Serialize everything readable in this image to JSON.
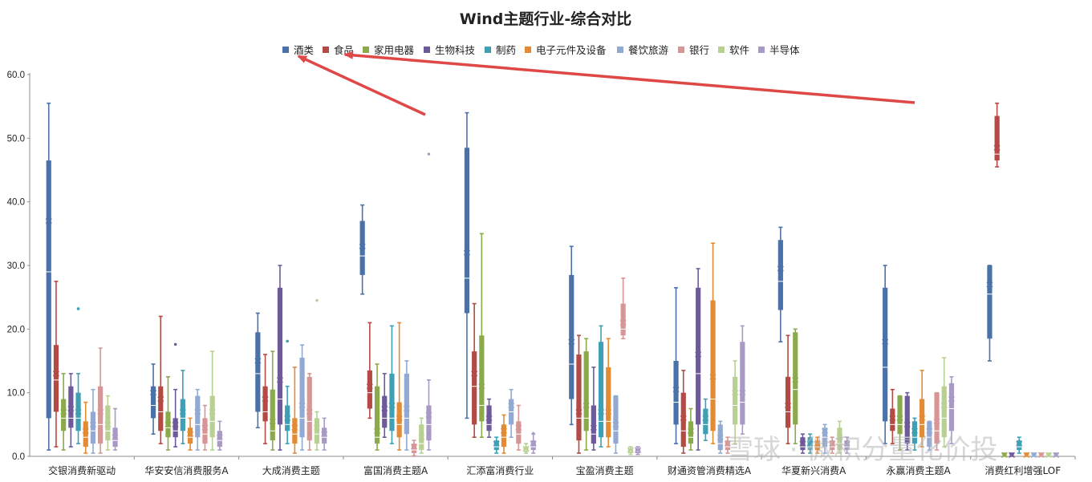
{
  "chart_data": {
    "type": "boxplot",
    "title": "Wind主题行业-综合对比",
    "xlabel": "",
    "ylabel": "",
    "ylim": [
      0,
      60
    ],
    "yticks": [
      "0.0",
      "10.0",
      "20.0",
      "30.0",
      "40.0",
      "50.0",
      "60.0"
    ],
    "legend_position": "top",
    "grid": false,
    "categories": [
      "交银消费新驱动",
      "华安安信消费服务A",
      "大成消费主题",
      "富国消费主题A",
      "汇添富消费行业",
      "宝盈消费主题",
      "财通资管消费精选A",
      "华夏新兴消费A",
      "永赢消费主题A",
      "消费红利增强LOF"
    ],
    "series": [
      {
        "name": "酒类",
        "color": "#4a72a8",
        "values": [
          [
            1,
            6,
            29,
            37,
            46.5,
            55.5
          ],
          [
            3.5,
            6,
            8,
            10,
            11,
            14.5
          ],
          [
            4.5,
            7,
            13,
            15,
            19.5,
            22.5
          ],
          [
            25.5,
            28.5,
            31.5,
            33,
            37,
            39.5
          ],
          [
            6,
            22.5,
            28,
            32,
            48.5,
            54
          ],
          [
            5,
            9,
            14.5,
            18,
            28.5,
            33
          ],
          [
            2,
            5,
            8.5,
            10.5,
            15,
            26.5
          ],
          [
            18,
            23,
            27.5,
            29.5,
            34,
            36
          ],
          [
            2,
            5.5,
            14,
            18,
            26.5,
            30
          ],
          [
            15,
            18.5,
            25.5,
            27,
            30,
            30
          ]
        ]
      },
      {
        "name": "食品",
        "color": "#b34a46",
        "values": [
          [
            1.5,
            7,
            12,
            13,
            17.5,
            27.5
          ],
          [
            2,
            4,
            7,
            9,
            11,
            22
          ],
          [
            2,
            5.5,
            7,
            9,
            11,
            16
          ],
          [
            6,
            7.5,
            10,
            11,
            13.5,
            21
          ],
          [
            3,
            5,
            11,
            13,
            16.5,
            24
          ],
          [
            0.5,
            2.5,
            6,
            7,
            16,
            19
          ],
          [
            0.5,
            1.5,
            4,
            6,
            10,
            13.5
          ],
          [
            2,
            4.5,
            7,
            8,
            12.5,
            19
          ],
          [
            2,
            4,
            5,
            6,
            7.5,
            10.5
          ],
          [
            45.5,
            46.5,
            47.5,
            48.5,
            53.5,
            55.5
          ]
        ]
      },
      {
        "name": "家用电器",
        "color": "#8aaa4b",
        "values": [
          [
            1,
            4,
            6,
            7,
            9,
            13
          ],
          [
            1,
            3,
            4.5,
            5,
            7,
            12.5
          ],
          [
            1,
            2.5,
            4,
            5.5,
            10.5,
            16.5
          ],
          [
            1,
            2,
            3,
            4,
            11,
            14.5
          ],
          [
            3,
            5.5,
            8,
            11,
            19,
            35
          ],
          [
            1,
            4,
            6,
            8,
            16.5,
            18.5
          ],
          [
            1,
            2,
            3,
            4,
            5.5,
            7.5
          ],
          [
            2,
            5,
            10.5,
            12,
            19.5,
            20
          ],
          [
            1,
            3.5,
            5,
            6,
            9.5,
            9.5
          ],
          [
            0,
            0,
            0.1,
            0.2,
            0.3,
            0.5
          ]
        ]
      },
      {
        "name": "生物科技",
        "color": "#6e5a9a",
        "values": [
          [
            1.5,
            4.5,
            6,
            7.5,
            11,
            13
          ],
          [
            1.5,
            3,
            4,
            5,
            6,
            10.5
          ],
          [
            1,
            5,
            9,
            12,
            26.5,
            30
          ],
          [
            3,
            4.5,
            6,
            7.5,
            9.5,
            13
          ],
          [
            3,
            4,
            5,
            6,
            8,
            9
          ],
          [
            1,
            2,
            3.5,
            4.5,
            8,
            14
          ],
          [
            1,
            5,
            13,
            16,
            26.5,
            29.5
          ],
          [
            0.5,
            1,
            1.5,
            2,
            3,
            3.5
          ],
          [
            1,
            2,
            3,
            5,
            9.5,
            10
          ],
          [
            0,
            0,
            0.1,
            0.2,
            0.3,
            0.5
          ]
        ]
      },
      {
        "name": "制药",
        "color": "#3f9fb5",
        "values": [
          [
            2,
            4,
            6,
            7,
            10,
            13
          ],
          [
            2,
            4,
            6,
            7,
            9,
            13.5
          ],
          [
            2,
            4,
            5,
            6,
            8,
            11
          ],
          [
            2,
            4,
            6,
            8,
            13,
            20.5
          ],
          [
            0.5,
            1,
            1.5,
            2,
            2.5,
            3
          ],
          [
            1.5,
            3,
            5.5,
            7,
            18,
            20.5
          ],
          [
            2.5,
            3.5,
            5,
            6,
            7.5,
            9
          ],
          [
            0.5,
            1,
            1.5,
            2,
            3,
            3.5
          ],
          [
            1,
            2,
            3,
            4,
            5.5,
            6
          ],
          [
            0.5,
            1,
            1.5,
            2,
            2.5,
            3
          ]
        ]
      },
      {
        "name": "电子元件及设备",
        "color": "#e38a35",
        "values": [
          [
            0.5,
            1.5,
            3,
            4,
            5.5,
            8.5
          ],
          [
            1,
            2,
            3,
            3.5,
            4.5,
            6
          ],
          [
            0.5,
            2,
            3.5,
            4.5,
            6,
            14
          ],
          [
            1,
            3,
            5,
            6,
            8.5,
            21
          ],
          [
            0.5,
            1.5,
            3,
            4,
            5,
            6.5
          ],
          [
            1.5,
            3,
            5.5,
            7,
            14,
            18.5
          ],
          [
            2,
            4,
            9,
            12.5,
            24.5,
            33.5
          ],
          [
            0.5,
            1,
            1.5,
            2,
            2.5,
            3
          ],
          [
            1.5,
            3,
            5,
            6,
            9,
            13.5
          ],
          [
            0,
            0,
            0.1,
            0.2,
            0.3,
            0.5
          ]
        ]
      },
      {
        "name": "餐饮旅游",
        "color": "#92a9d4",
        "values": [
          [
            0.5,
            2,
            4,
            5,
            7,
            10.5
          ],
          [
            1,
            3,
            5,
            7,
            9.5,
            10.5
          ],
          [
            1,
            3,
            6,
            8,
            15.5,
            17.5
          ],
          [
            1,
            3.5,
            6,
            7.5,
            13,
            15
          ],
          [
            3,
            5,
            7,
            8,
            9,
            10.5
          ],
          [
            0.5,
            2,
            4,
            5,
            9.5,
            9.5
          ],
          [
            0.5,
            1,
            2,
            3,
            5,
            5.5
          ],
          [
            0.5,
            1.5,
            3,
            4,
            4.5,
            5
          ],
          [
            1,
            1.5,
            3,
            4,
            5.5,
            5.5
          ],
          [
            0,
            0,
            0.1,
            0.2,
            0.3,
            0.5
          ]
        ]
      },
      {
        "name": "银行",
        "color": "#d79695",
        "values": [
          [
            0.5,
            2,
            5,
            7,
            11,
            17
          ],
          [
            1,
            2,
            3.5,
            4.5,
            6,
            8
          ],
          [
            1,
            2.5,
            5.5,
            7,
            12.5,
            13
          ],
          [
            0.1,
            0.5,
            1,
            1.5,
            2,
            2.5
          ],
          [
            1,
            2,
            3.5,
            4.5,
            5.5,
            8
          ],
          [
            18.5,
            19,
            20,
            21,
            24,
            28
          ],
          [
            0.5,
            1,
            1.5,
            2,
            2.5,
            3
          ],
          [
            0.5,
            1,
            1.5,
            2,
            2.5,
            3
          ],
          [
            1,
            2,
            4,
            5.5,
            10,
            10
          ],
          [
            0,
            0,
            0.1,
            0.2,
            0.3,
            0.5
          ]
        ]
      },
      {
        "name": "软件",
        "color": "#b8d092",
        "values": [
          [
            1,
            2.5,
            4,
            5,
            8,
            9.5
          ],
          [
            1,
            3,
            5.5,
            7,
            9.5,
            16.5
          ],
          [
            1,
            2,
            3.5,
            4.5,
            6,
            7
          ],
          [
            0.5,
            1,
            2,
            3,
            5,
            6
          ],
          [
            0.5,
            0.7,
            1,
            1.2,
            1.5,
            2
          ],
          [
            0.3,
            0.5,
            0.8,
            1,
            1.2,
            1.5
          ],
          [
            2,
            5,
            8,
            10,
            12.5,
            15
          ],
          [
            0.5,
            1,
            2,
            3,
            4.5,
            5.5
          ],
          [
            1.5,
            3,
            6,
            8,
            11,
            15.5
          ],
          [
            0,
            0,
            0.1,
            0.2,
            0.3,
            0.5
          ]
        ]
      },
      {
        "name": "半导体",
        "color": "#a99ac5",
        "values": [
          [
            1,
            1.5,
            2.5,
            3,
            4.5,
            7.5
          ],
          [
            1,
            1.5,
            2.5,
            3,
            4,
            5.5
          ],
          [
            1,
            2,
            3,
            3.5,
            4.5,
            6
          ],
          [
            1,
            2.5,
            5,
            6.5,
            8,
            12
          ],
          [
            0.5,
            1,
            1.5,
            2,
            2.5,
            3.5
          ],
          [
            0.3,
            0.5,
            0.8,
            1,
            1.2,
            1.5
          ],
          [
            3.5,
            5,
            8.5,
            10,
            18,
            20.5
          ],
          [
            0.5,
            1,
            1.5,
            2,
            2.5,
            3
          ],
          [
            2,
            4,
            7.5,
            9,
            11.5,
            12.5
          ],
          [
            0,
            0,
            0.1,
            0.2,
            0.3,
            0.5
          ]
        ]
      }
    ],
    "outliers": [
      {
        "series": "制药",
        "category": "交银消费新驱动",
        "value": 23.2
      },
      {
        "series": "生物科技",
        "category": "华安安信消费服务A",
        "value": 17.6
      },
      {
        "series": "制药",
        "category": "大成消费主题",
        "value": 18.1
      },
      {
        "series": "软件",
        "category": "大成消费主题",
        "value": 24.5
      },
      {
        "series": "半导体",
        "category": "富国消费主题A",
        "value": 47.5
      },
      {
        "series": "半导体",
        "category": "汇添富消费行业",
        "value": 3.6
      }
    ],
    "annotations": [
      "red arrows pointing from 汇添富消费行业 and 消费红利增强LOF peaks to legend entries 酒类 and 食品"
    ]
  },
  "watermark": "雪球 · 微积分量化价投"
}
